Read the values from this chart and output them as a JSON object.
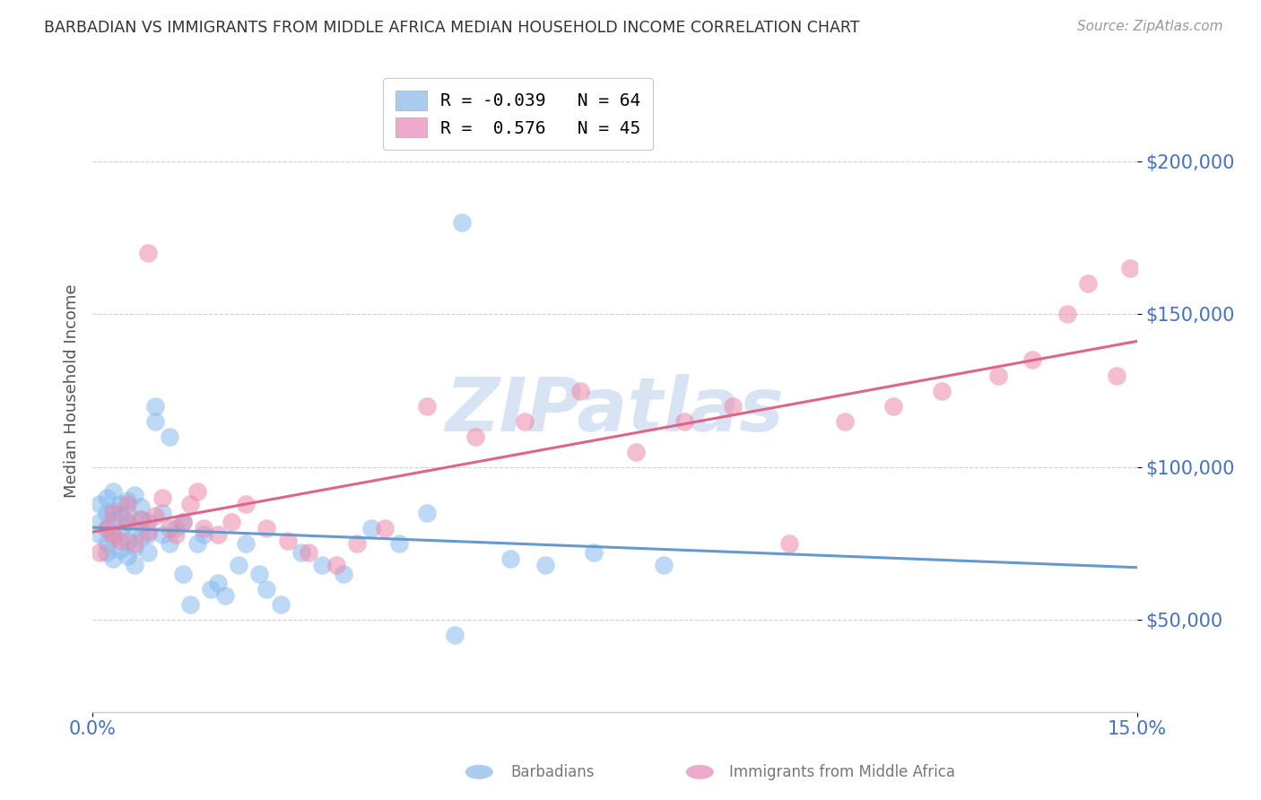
{
  "title": "BARBADIAN VS IMMIGRANTS FROM MIDDLE AFRICA MEDIAN HOUSEHOLD INCOME CORRELATION CHART",
  "source": "Source: ZipAtlas.com",
  "ylabel": "Median Household Income",
  "xlim": [
    0.0,
    0.15
  ],
  "ylim": [
    20000,
    230000
  ],
  "xtick_positions": [
    0.0,
    0.15
  ],
  "xtick_labels": [
    "0.0%",
    "15.0%"
  ],
  "ytick_values": [
    50000,
    100000,
    150000,
    200000
  ],
  "ytick_labels": [
    "$50,000",
    "$100,000",
    "$150,000",
    "$200,000"
  ],
  "background_color": "#ffffff",
  "grid_color": "#d0d0d0",
  "watermark_text": "ZIPatlas",
  "watermark_color": "#c8d8f0",
  "series1_color": "#88bbee",
  "series2_color": "#ee88aa",
  "trendline1_color": "#6699cc",
  "trendline2_color": "#dd6688",
  "R1": -0.039,
  "N1": 64,
  "R2": 0.576,
  "N2": 45,
  "legend1_label": "R = -0.039   N = 64",
  "legend2_label": "R =  0.576   N = 45",
  "legend1_patch_color": "#aaccee",
  "legend2_patch_color": "#eeaacc",
  "bottom_label1": "Barbadians",
  "bottom_label2": "Immigrants from Middle Africa",
  "barbadians_x": [
    0.001,
    0.001,
    0.001,
    0.002,
    0.002,
    0.002,
    0.002,
    0.002,
    0.003,
    0.003,
    0.003,
    0.003,
    0.003,
    0.004,
    0.004,
    0.004,
    0.004,
    0.005,
    0.005,
    0.005,
    0.005,
    0.005,
    0.006,
    0.006,
    0.006,
    0.006,
    0.007,
    0.007,
    0.007,
    0.008,
    0.008,
    0.008,
    0.009,
    0.009,
    0.01,
    0.01,
    0.011,
    0.011,
    0.012,
    0.013,
    0.013,
    0.014,
    0.015,
    0.016,
    0.017,
    0.018,
    0.019,
    0.021,
    0.022,
    0.024,
    0.025,
    0.027,
    0.03,
    0.033,
    0.036,
    0.04,
    0.044,
    0.048,
    0.053,
    0.06,
    0.065,
    0.072,
    0.082,
    0.052
  ],
  "barbadians_y": [
    82000,
    78000,
    88000,
    75000,
    85000,
    80000,
    72000,
    90000,
    83000,
    77000,
    92000,
    70000,
    86000,
    79000,
    84000,
    73000,
    88000,
    82000,
    76000,
    89000,
    71000,
    85000,
    80000,
    74000,
    91000,
    68000,
    83000,
    77000,
    87000,
    78000,
    82000,
    72000,
    120000,
    115000,
    85000,
    78000,
    110000,
    75000,
    80000,
    82000,
    65000,
    55000,
    75000,
    78000,
    60000,
    62000,
    58000,
    68000,
    75000,
    65000,
    60000,
    55000,
    72000,
    68000,
    65000,
    80000,
    75000,
    85000,
    180000,
    70000,
    68000,
    72000,
    68000,
    45000
  ],
  "middle_africa_x": [
    0.001,
    0.002,
    0.003,
    0.003,
    0.004,
    0.005,
    0.005,
    0.006,
    0.007,
    0.008,
    0.008,
    0.009,
    0.01,
    0.011,
    0.012,
    0.013,
    0.014,
    0.015,
    0.016,
    0.018,
    0.02,
    0.022,
    0.025,
    0.028,
    0.031,
    0.035,
    0.038,
    0.042,
    0.048,
    0.055,
    0.062,
    0.07,
    0.078,
    0.085,
    0.092,
    0.1,
    0.108,
    0.115,
    0.122,
    0.13,
    0.135,
    0.14,
    0.143,
    0.147,
    0.149
  ],
  "middle_africa_y": [
    72000,
    80000,
    78000,
    85000,
    76000,
    82000,
    88000,
    75000,
    83000,
    79000,
    170000,
    84000,
    90000,
    80000,
    78000,
    82000,
    88000,
    92000,
    80000,
    78000,
    82000,
    88000,
    80000,
    76000,
    72000,
    68000,
    75000,
    80000,
    120000,
    110000,
    115000,
    125000,
    105000,
    115000,
    120000,
    75000,
    115000,
    120000,
    125000,
    130000,
    135000,
    150000,
    160000,
    130000,
    165000
  ]
}
